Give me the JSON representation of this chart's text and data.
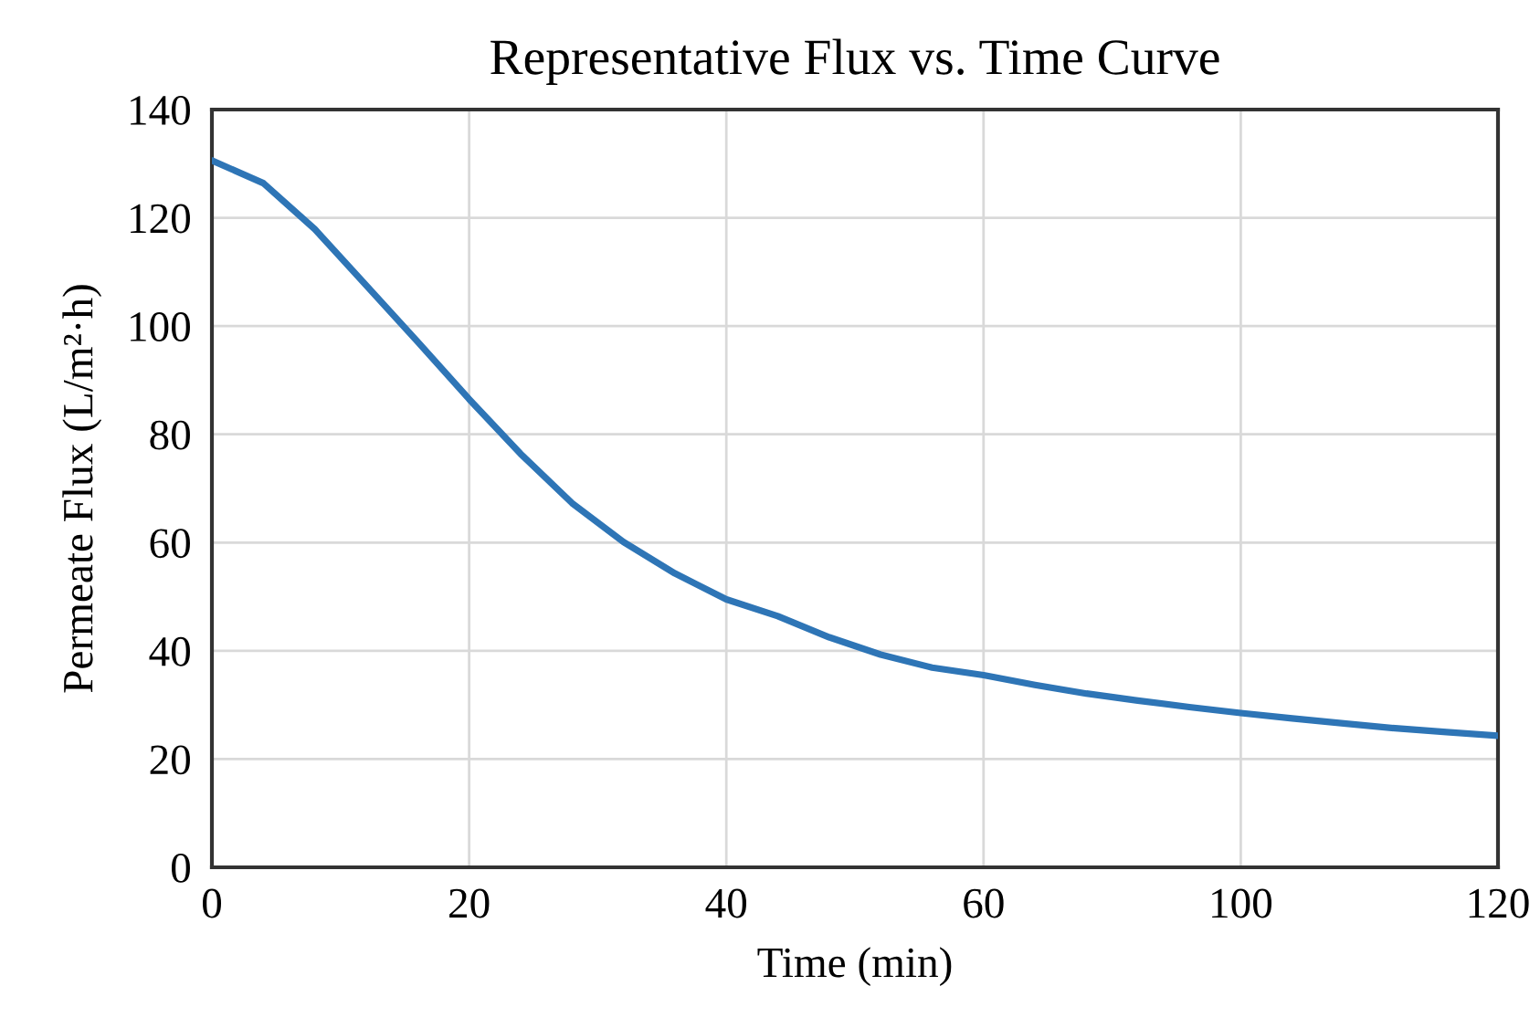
{
  "chart_data": {
    "type": "line",
    "title": "Representative Flux vs. Time Curve",
    "xlabel": "Time (min)",
    "ylabel": "Permeate Flux (L/m²·h)",
    "categories": [
      "0",
      null,
      null,
      null,
      null,
      "20",
      null,
      null,
      null,
      null,
      "40",
      null,
      null,
      null,
      null,
      "60",
      null,
      null,
      null,
      null,
      "100",
      null,
      null,
      null,
      null,
      "120"
    ],
    "series": [
      {
        "color": "#2e75b6",
        "values": [
          130.6,
          126.4,
          117.9,
          107.5,
          97.1,
          86.5,
          76.4,
          67.3,
          60.1,
          54.3,
          49.5,
          46.4,
          42.5,
          39.3,
          36.9,
          35.5,
          33.7,
          32.1,
          30.8,
          29.6,
          28.5,
          27.5,
          26.6,
          25.7,
          25.0,
          24.3
        ]
      }
    ],
    "ylim": [
      0,
      140
    ],
    "yticks": [
      0,
      20,
      40,
      60,
      80,
      100,
      120,
      140
    ],
    "grid": true,
    "marker": "none",
    "line_style": "solid"
  }
}
